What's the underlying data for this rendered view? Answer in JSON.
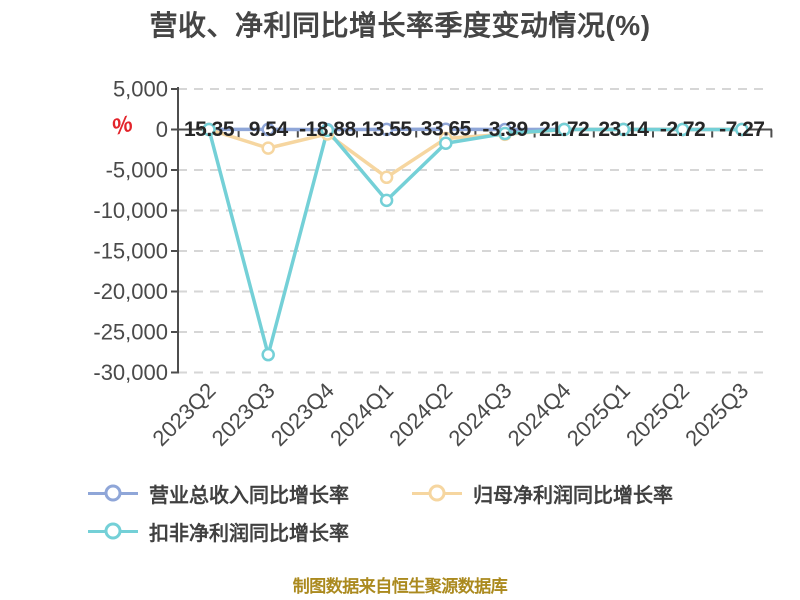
{
  "axis_unit_icon": "%",
  "footer": "制图数据来自恒生聚源数据库",
  "chart_data": {
    "type": "line",
    "title": "营收、净利同比增长率季度变动情况(%)",
    "categories": [
      "2023Q2",
      "2023Q3",
      "2023Q4",
      "2024Q1",
      "2024Q2",
      "2024Q3",
      "2024Q4",
      "2025Q1",
      "2025Q2",
      "2025Q3"
    ],
    "series": [
      {
        "name": "营业总收入同比增长率",
        "color": "#8FA6D8",
        "values": [
          15.35,
          9.54,
          -18.88,
          13.55,
          33.65,
          -3.39,
          21.72,
          23.14,
          -2.72,
          -7.27
        ],
        "show_labels": true
      },
      {
        "name": "归母净利润同比增长率",
        "color": "#F6D6A0",
        "values": [
          0,
          -2300,
          -550,
          -5900,
          -1100,
          -600,
          0,
          0,
          0,
          0
        ],
        "show_labels": false
      },
      {
        "name": "扣非净利润同比增长率",
        "color": "#74D0D7",
        "values": [
          0,
          -27800,
          -100,
          -8750,
          -1700,
          -500,
          0,
          0,
          0,
          0
        ],
        "show_labels": false
      }
    ],
    "y_ticks": [
      5000,
      0,
      -5000,
      -10000,
      -15000,
      -20000,
      -25000,
      -30000
    ],
    "ylim": [
      -30000,
      5000
    ],
    "grid": "dashed-horizontal",
    "legend_position": "bottom-left",
    "x_label_rotation": -45
  }
}
